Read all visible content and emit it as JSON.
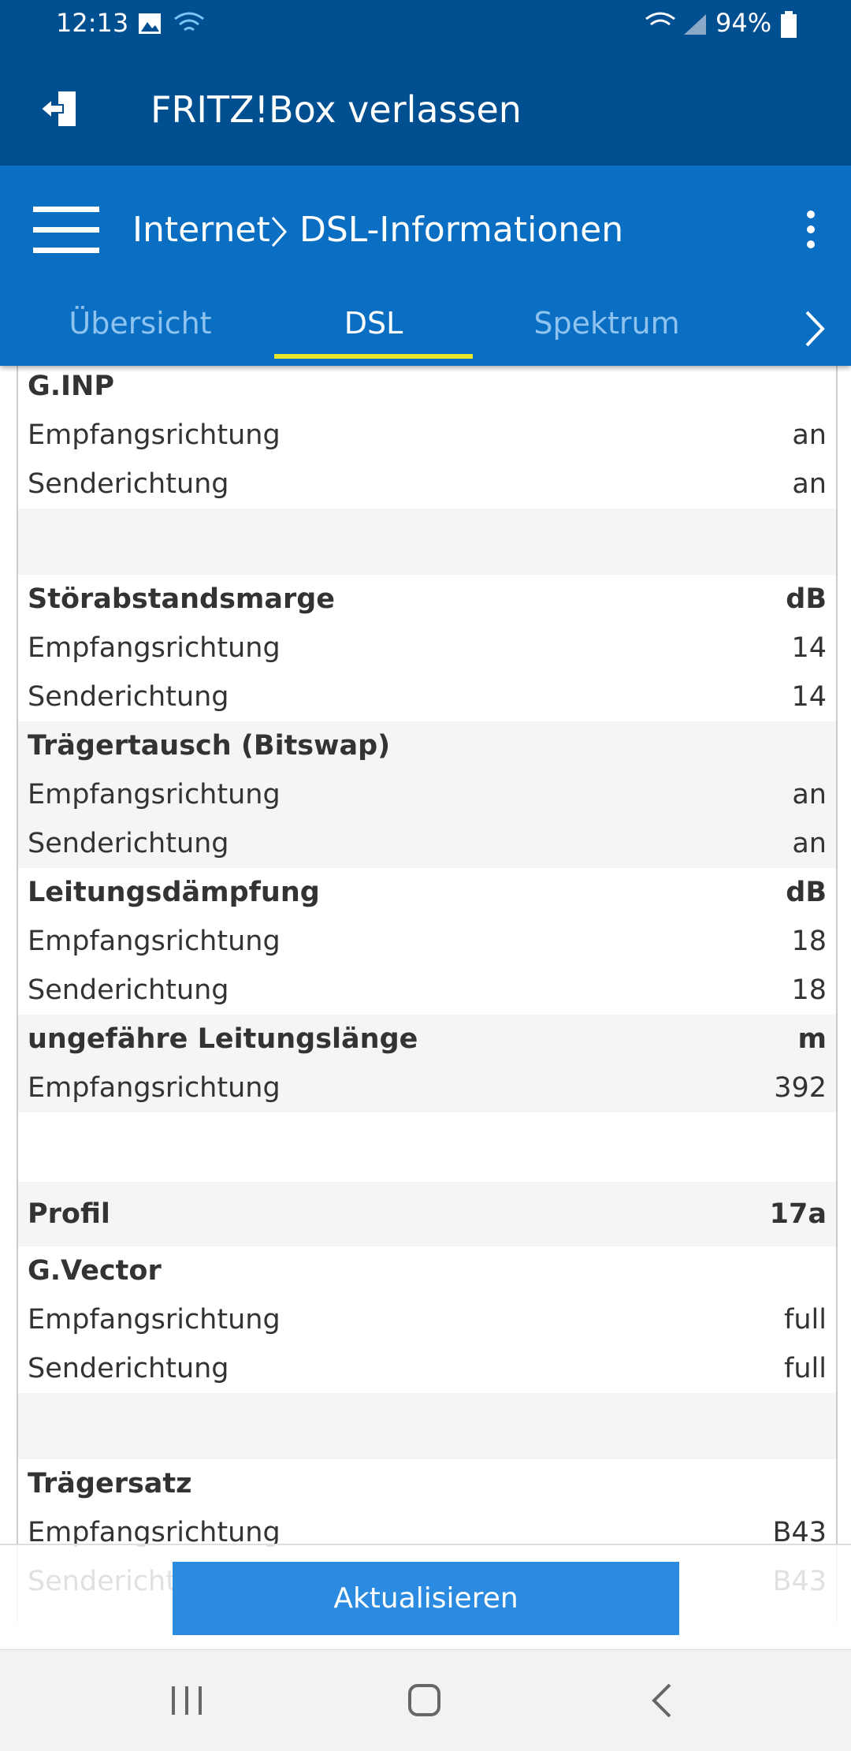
{
  "status_bar": {
    "time": "12:13",
    "battery": "94%"
  },
  "app_bar": {
    "title": "FRITZ!Box verlassen"
  },
  "header": {
    "breadcrumb": [
      "Internet",
      "DSL-Informationen"
    ]
  },
  "tabs": {
    "items": [
      "Übersicht",
      "DSL",
      "Spektrum"
    ],
    "active": 1
  },
  "sections": [
    {
      "title": "G.INP",
      "rows": [
        {
          "label": "Empfangsrichtung",
          "value": "an"
        },
        {
          "label": "Senderichtung",
          "value": "an"
        }
      ]
    },
    {
      "title": "Störabstandsmarge",
      "unit": "dB",
      "rows": [
        {
          "label": "Empfangsrichtung",
          "value": 14
        },
        {
          "label": "Senderichtung",
          "value": 14
        }
      ]
    },
    {
      "title": "Trägertausch (Bitswap)",
      "rows": [
        {
          "label": "Empfangsrichtung",
          "value": "an"
        },
        {
          "label": "Senderichtung",
          "value": "an"
        }
      ]
    },
    {
      "title": "Leitungsdämpfung",
      "unit": "dB",
      "rows": [
        {
          "label": "Empfangsrichtung",
          "value": 18
        },
        {
          "label": "Senderichtung",
          "value": 18
        }
      ]
    },
    {
      "title": "ungefähre Leitungslänge",
      "unit": "m",
      "rows": [
        {
          "label": "Empfangsrichtung",
          "value": 392
        }
      ]
    },
    {
      "title": "Profil",
      "unit": "17a",
      "rows": []
    },
    {
      "title": "G.Vector",
      "rows": [
        {
          "label": "Empfangsrichtung",
          "value": "full"
        },
        {
          "label": "Senderichtung",
          "value": "full"
        }
      ]
    },
    {
      "title": "Trägersatz",
      "rows": [
        {
          "label": "Empfangsrichtung",
          "value": "B43"
        },
        {
          "label": "Senderichtung",
          "value": "B43"
        }
      ]
    }
  ],
  "button": {
    "label": "Aktualisieren"
  }
}
